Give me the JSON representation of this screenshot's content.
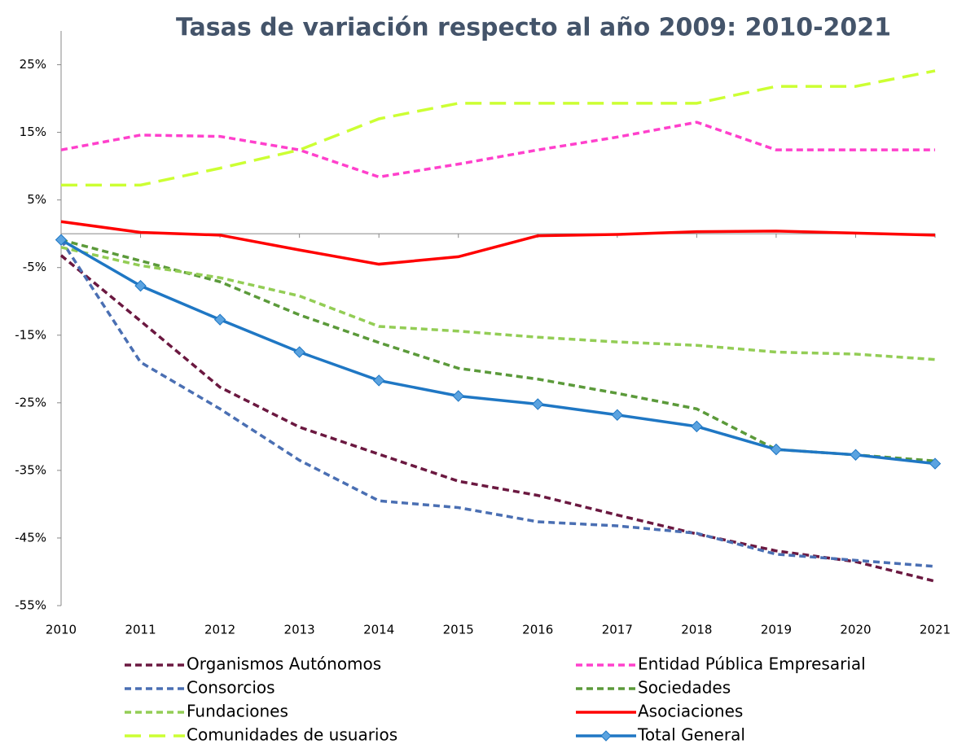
{
  "chart_data": {
    "type": "line",
    "title": "Tasas de variación respecto al año 2009: 2010-2021",
    "categories": [
      "2010",
      "2011",
      "2012",
      "2013",
      "2014",
      "2015",
      "2016",
      "2017",
      "2018",
      "2019",
      "2020",
      "2021"
    ],
    "ylim": [
      -55,
      30
    ],
    "yticks": [
      {
        "value": -55,
        "label": "-55%"
      },
      {
        "value": -45,
        "label": "-45%"
      },
      {
        "value": -35,
        "label": "-35%"
      },
      {
        "value": -25,
        "label": "-25%"
      },
      {
        "value": -15,
        "label": "-15%"
      },
      {
        "value": -5,
        "label": "-5%"
      },
      {
        "value": 5,
        "label": "5%"
      },
      {
        "value": 15,
        "label": "15%"
      },
      {
        "value": 25,
        "label": "25%"
      }
    ],
    "grid": false,
    "legend": "bottom",
    "series": [
      {
        "name": "Organismos Autónomos",
        "color": "#6b1840",
        "dash": "dash",
        "values": [
          -3.2,
          -12.9,
          -22.7,
          -28.6,
          -32.6,
          -36.6,
          -38.7,
          -41.6,
          -44.4,
          -46.9,
          -48.5,
          -51.4
        ]
      },
      {
        "name": "Entidad Pública Empresarial",
        "color": "#ff40cc",
        "dash": "dash",
        "values": [
          12.4,
          14.6,
          14.4,
          12.4,
          8.4,
          10.3,
          12.4,
          14.3,
          16.5,
          12.4,
          12.4,
          12.4
        ]
      },
      {
        "name": "Consorcios",
        "color": "#4a6fb3",
        "dash": "dash",
        "values": [
          -0.9,
          -19.0,
          -25.9,
          -33.5,
          -39.5,
          -40.5,
          -42.6,
          -43.2,
          -44.3,
          -47.4,
          -48.3,
          -49.2
        ]
      },
      {
        "name": "Sociedades",
        "color": "#5b9a3a",
        "dash": "dash",
        "values": [
          -0.9,
          -4.0,
          -7.1,
          -12.0,
          -16.1,
          -19.9,
          -21.5,
          -23.6,
          -25.9,
          -31.9,
          -32.7,
          -33.6
        ]
      },
      {
        "name": "Fundaciones",
        "color": "#93cd55",
        "dash": "dash",
        "values": [
          -2.0,
          -4.7,
          -6.5,
          -9.2,
          -13.7,
          -14.4,
          -15.3,
          -16.0,
          -16.5,
          -17.5,
          -17.8,
          -18.6
        ]
      },
      {
        "name": "Asociaciones",
        "color": "#ff0000",
        "dash": "solid",
        "values": [
          1.8,
          0.2,
          -0.2,
          -2.4,
          -4.5,
          -3.4,
          -0.3,
          -0.1,
          0.3,
          0.4,
          0.1,
          -0.2
        ]
      },
      {
        "name": "Comunidades de usuarios",
        "color": "#ccff33",
        "dash": "long-dash",
        "values": [
          7.2,
          7.2,
          9.7,
          12.4,
          17.0,
          19.3,
          19.3,
          19.3,
          19.3,
          21.8,
          21.8,
          24.1
        ]
      },
      {
        "name": "Total General",
        "color": "#1f77c4",
        "dash": "solid",
        "marker": "diamond",
        "values": [
          -0.9,
          -7.7,
          -12.7,
          -17.5,
          -21.7,
          -24.0,
          -25.2,
          -26.8,
          -28.5,
          -31.9,
          -32.7,
          -34.0
        ]
      }
    ]
  }
}
